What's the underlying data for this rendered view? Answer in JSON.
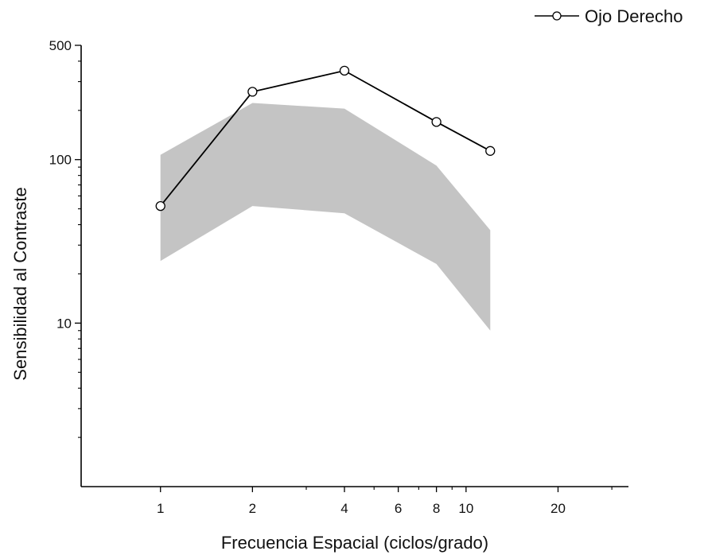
{
  "chart_data": {
    "type": "line",
    "xlabel": "Frecuencia Espacial (ciclos/grado)",
    "ylabel": "Sensibilidad al Contraste",
    "x_scale": "log",
    "y_scale": "log",
    "xlim": [
      0.55,
      34
    ],
    "ylim": [
      1,
      500
    ],
    "x_ticks": [
      1,
      2,
      4,
      6,
      8,
      10,
      20
    ],
    "x_tick_labels": [
      "1",
      "2",
      "4",
      "6",
      "8",
      "10",
      "20"
    ],
    "y_ticks": [
      10,
      100,
      500
    ],
    "y_tick_labels": [
      "10",
      "100",
      "500"
    ],
    "legend": {
      "placement": "top-right"
    },
    "series": [
      {
        "name": "Ojo Derecho",
        "style": "line-with-open-circles",
        "color": "#000000",
        "x": [
          1,
          2,
          4,
          8,
          12
        ],
        "y": [
          52,
          260,
          350,
          170,
          113
        ]
      }
    ],
    "normal_range": {
      "color": "#c4c4c4",
      "x": [
        1,
        2,
        4,
        8,
        12
      ],
      "upper": [
        107,
        222,
        205,
        92,
        37
      ],
      "lower": [
        24,
        52,
        47,
        23,
        9
      ]
    }
  }
}
